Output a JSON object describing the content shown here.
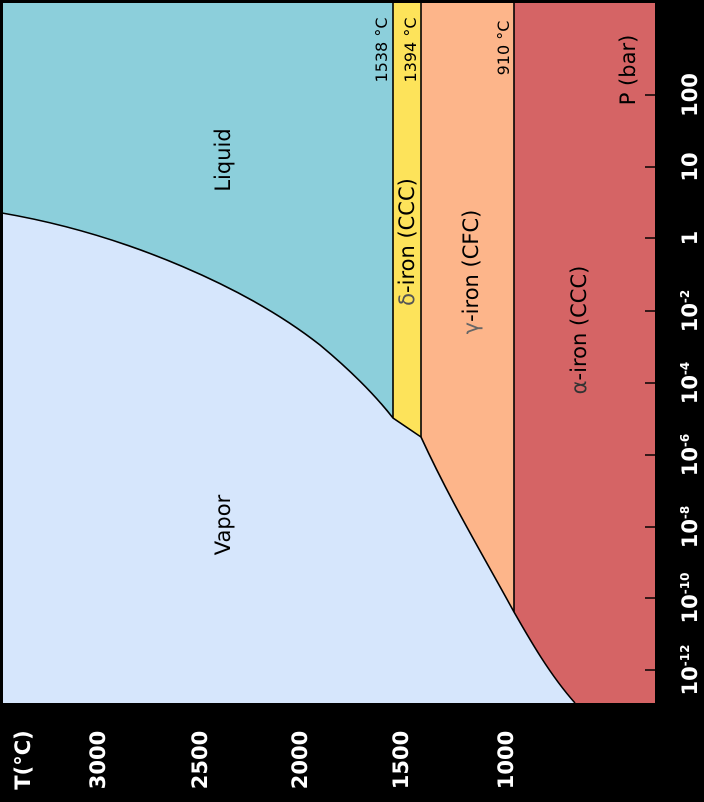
{
  "phases": {
    "liquid": "Liquid",
    "vapor": "Vapor",
    "delta": {
      "symbol": "δ",
      "label": "-iron (CCC)"
    },
    "gamma": {
      "symbol": "γ",
      "label": "-iron (CFC)"
    },
    "alpha": {
      "symbol": "α",
      "label": "-iron (CCC)"
    }
  },
  "isotherms": [
    "1538 °C",
    "1394 °C",
    "910 °C"
  ],
  "axes": {
    "temperature_label": "T(°C)",
    "temperature_ticks": [
      "3000",
      "2500",
      "2000",
      "1500",
      "1000"
    ],
    "pressure_label": "P (bar)",
    "pressure_ticks": [
      {
        "base": "100",
        "exp": ""
      },
      {
        "base": "10",
        "exp": ""
      },
      {
        "base": "1",
        "exp": ""
      },
      {
        "base": "10",
        "exp": "-2"
      },
      {
        "base": "10",
        "exp": "-4"
      },
      {
        "base": "10",
        "exp": "-6"
      },
      {
        "base": "10",
        "exp": "-8"
      },
      {
        "base": "10",
        "exp": "-10"
      },
      {
        "base": "10",
        "exp": "-12"
      }
    ]
  },
  "colors": {
    "liquid": "#8ccfdb",
    "vapor": "#d6e6fc",
    "delta": "#fde35a",
    "gamma": "#fdb58a",
    "alpha": "#d56465",
    "background": "#000000"
  }
}
